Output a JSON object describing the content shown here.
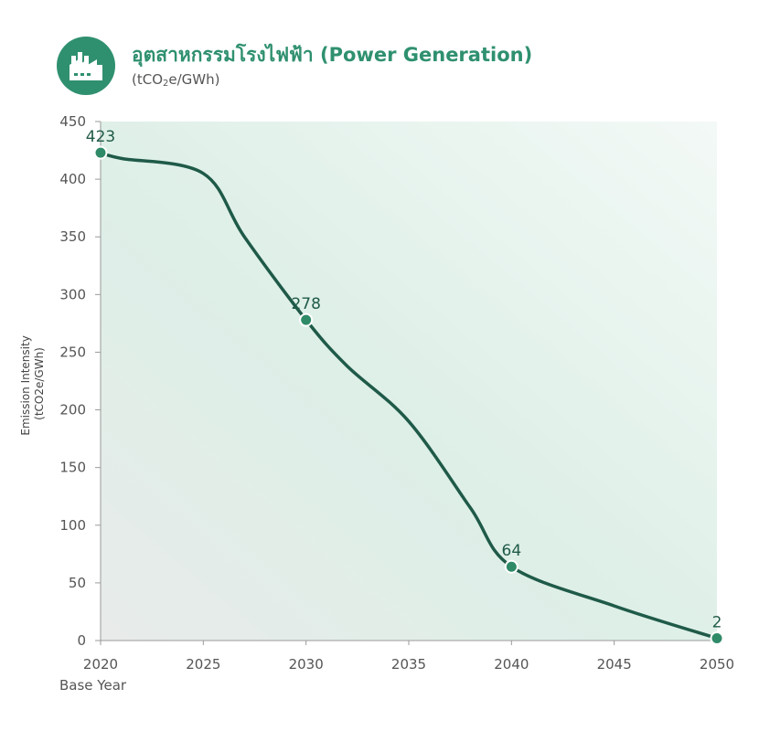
{
  "header": {
    "icon": "factory-icon",
    "title": "อุตสาหกรรมโรงไฟฟ้า (Power Generation)",
    "subtitle_pre": "(tCO",
    "subtitle_sub": "2",
    "subtitle_post": "e/GWh)"
  },
  "colors": {
    "accent": "#2f9070",
    "line": "#1f5a48",
    "marker": "#2f8a68"
  },
  "chart_data": {
    "type": "line",
    "ylabel_line1": "Emission Intensity",
    "ylabel_line2": "(tCO2e/GWh)",
    "x_note": "Base Year",
    "xlim": [
      2020,
      2050
    ],
    "ylim": [
      0,
      450
    ],
    "x_ticks": [
      2020,
      2025,
      2030,
      2035,
      2040,
      2045,
      2050
    ],
    "y_ticks": [
      0,
      50,
      100,
      150,
      200,
      250,
      300,
      350,
      400,
      450
    ],
    "grid": false,
    "series": [
      {
        "x": [
          2020,
          2021,
          2025,
          2027,
          2030,
          2032,
          2035,
          2038,
          2040,
          2045,
          2050
        ],
        "y": [
          423,
          418,
          405,
          350,
          278,
          238,
          190,
          115,
          64,
          30,
          2
        ]
      }
    ],
    "markers": [
      {
        "x": 2020,
        "y": 423,
        "label": "423"
      },
      {
        "x": 2030,
        "y": 278,
        "label": "278"
      },
      {
        "x": 2040,
        "y": 64,
        "label": "64"
      },
      {
        "x": 2050,
        "y": 2,
        "label": "2"
      }
    ]
  }
}
